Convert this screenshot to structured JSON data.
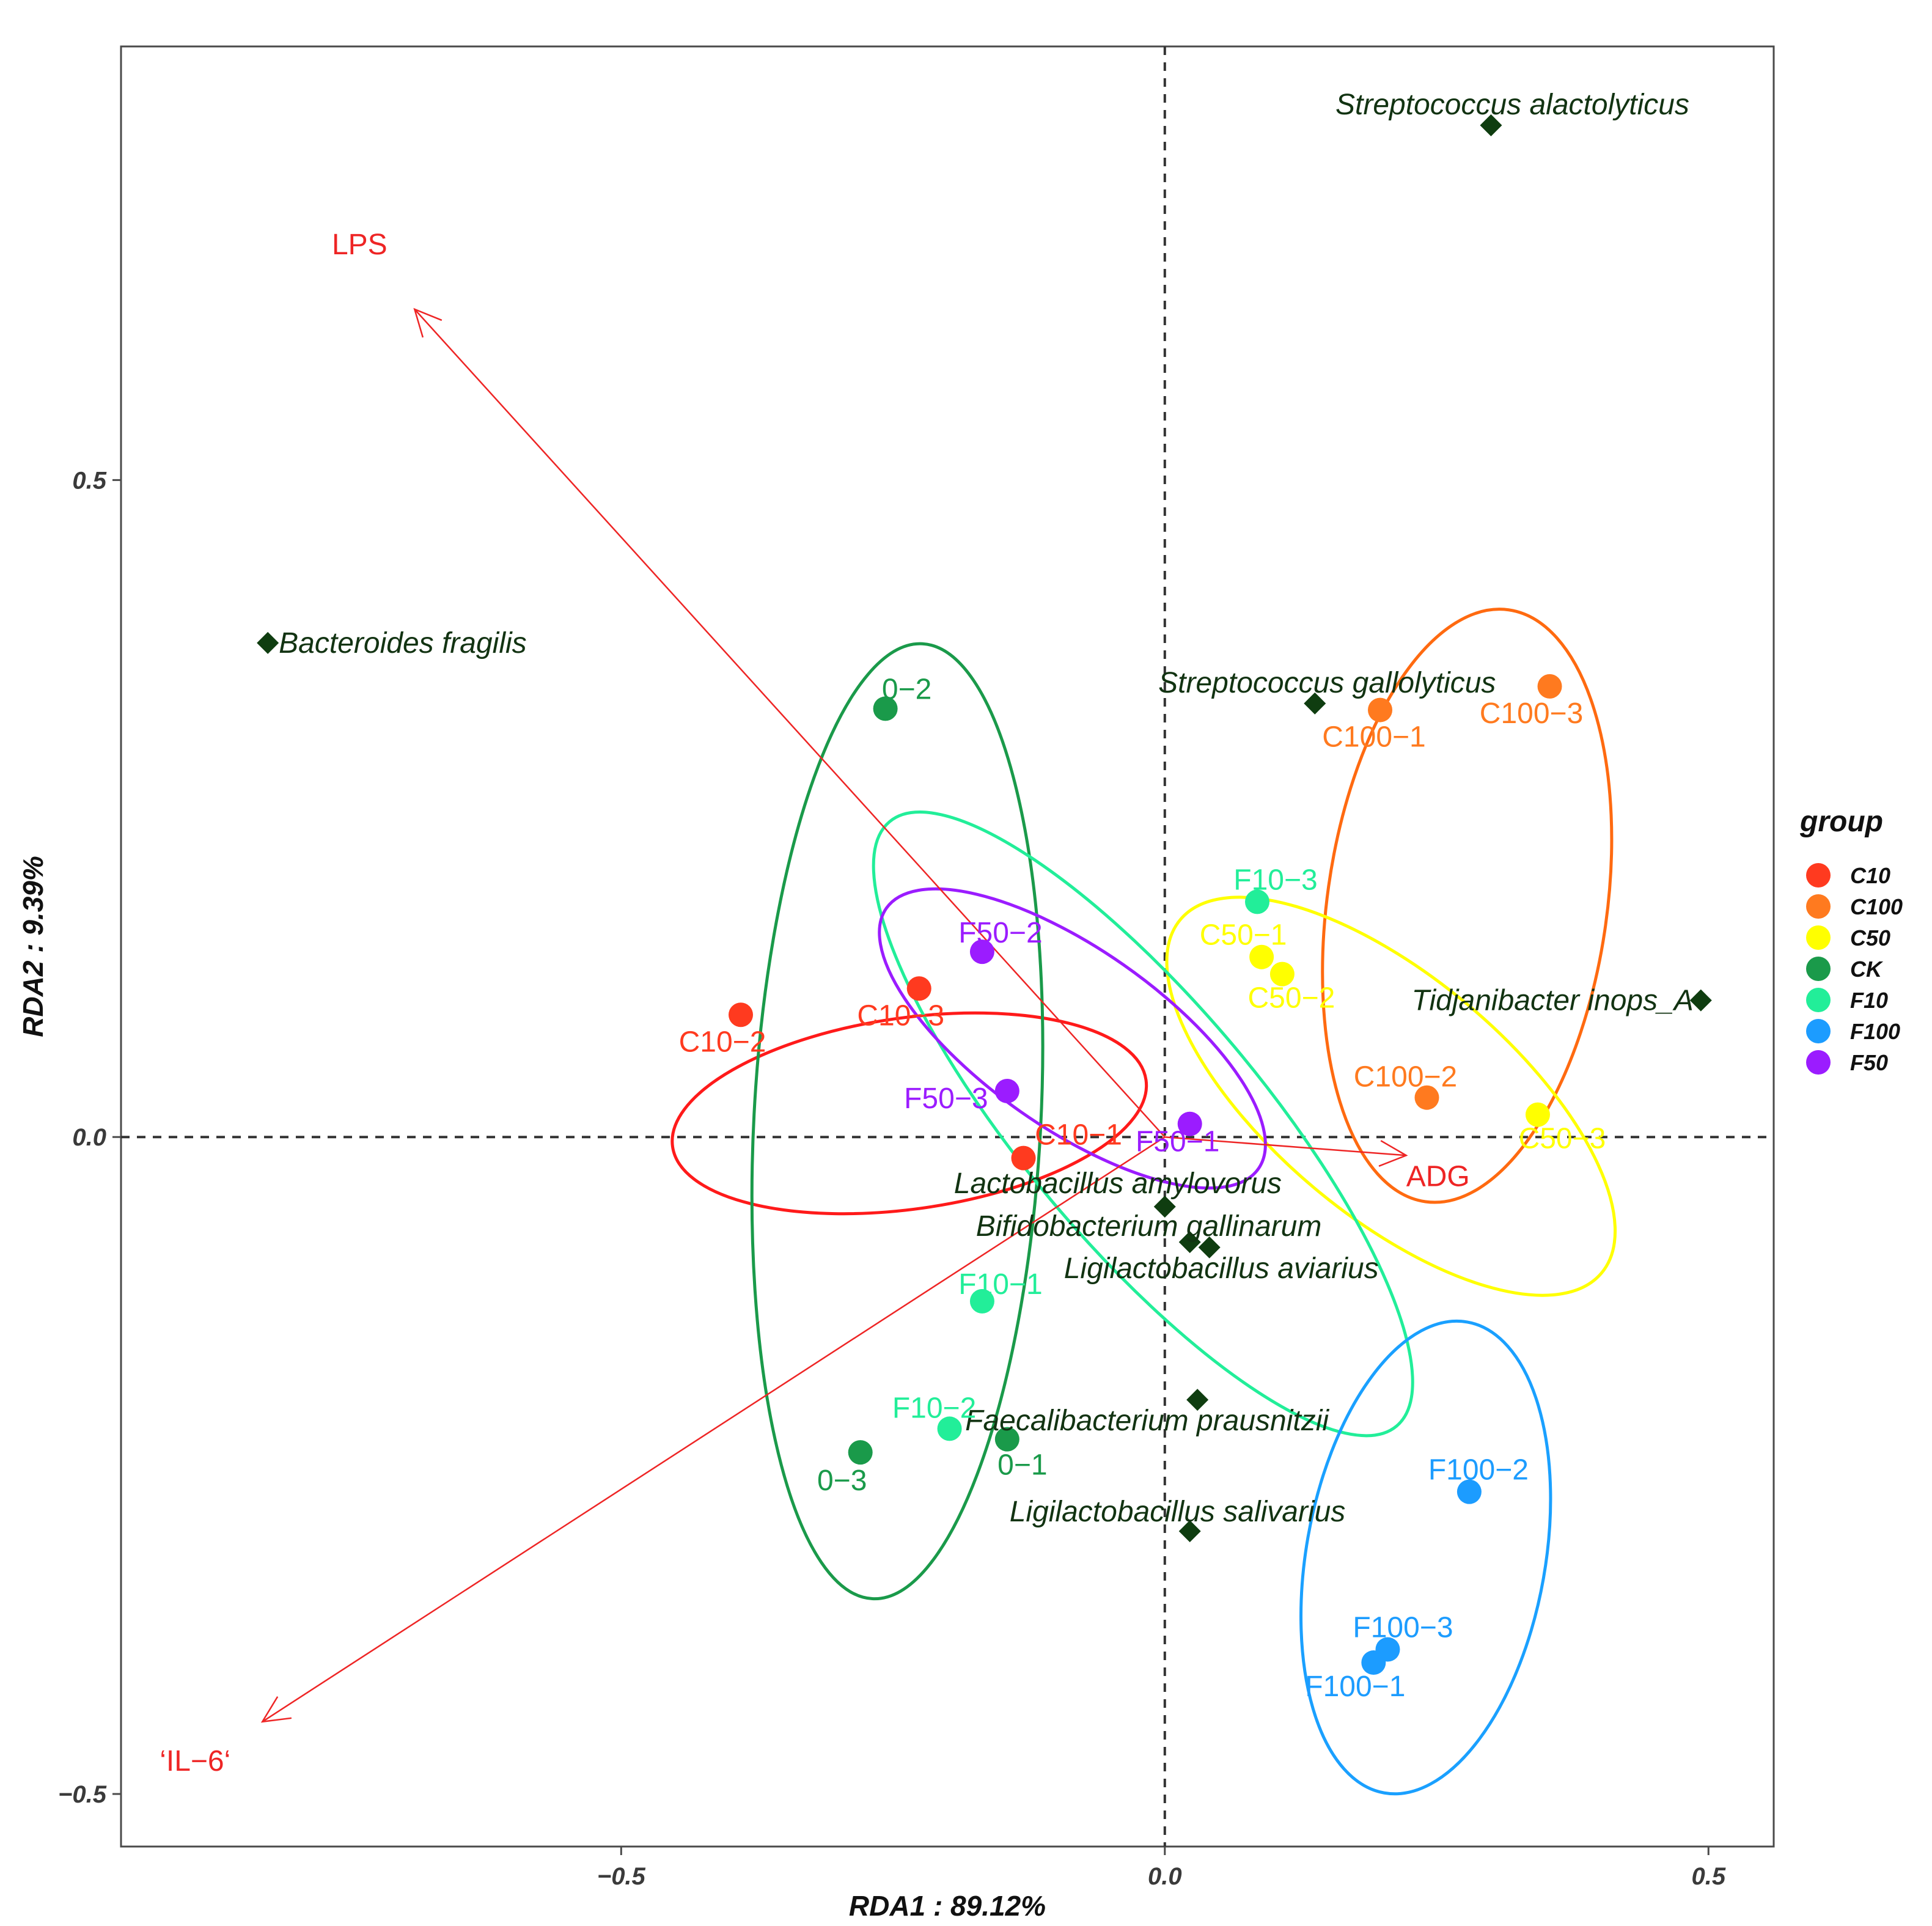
{
  "chart_data": {
    "type": "scatter",
    "subtype": "RDA biplot",
    "title": "",
    "xlabel": "RDA1 : 89.12%",
    "ylabel": "RDA2 : 9.39%",
    "xlim": [
      -0.96,
      0.56
    ],
    "ylim": [
      -0.54,
      0.83
    ],
    "xticks": [
      {
        "value": -0.5,
        "label": "-0.5"
      },
      {
        "value": 0.0,
        "label": "0.0"
      },
      {
        "value": 0.5,
        "label": "0.5"
      }
    ],
    "yticks": [
      {
        "value": -0.5,
        "label": "-0.5"
      },
      {
        "value": 0.0,
        "label": "0.0"
      },
      {
        "value": 0.5,
        "label": "0.5"
      }
    ],
    "reference_lines": {
      "x": 0,
      "y": 0,
      "style": "dashed"
    },
    "legend": {
      "title": "group",
      "position": "right",
      "entries": [
        {
          "label": "C10",
          "color": "#ff3a1f"
        },
        {
          "label": "C100",
          "color": "#ff7a1f"
        },
        {
          "label": "C50",
          "color": "#ffff00"
        },
        {
          "label": "CK",
          "color": "#1a9a4a"
        },
        {
          "label": "F10",
          "color": "#22ee99"
        },
        {
          "label": "F100",
          "color": "#1c9cff"
        },
        {
          "label": "F50",
          "color": "#9b1cff"
        }
      ]
    },
    "groups": [
      {
        "name": "C10",
        "color": "#ff3a1f",
        "ellipse_color": "#ff1a1a",
        "ellipse": {
          "cx": -0.235,
          "cy": 0.018,
          "rx": 0.2,
          "ry": 0.08,
          "angle_deg": 8
        },
        "points": [
          {
            "label": "C10-1",
            "x": -0.13,
            "y": -0.016
          },
          {
            "label": "C10-2",
            "x": -0.39,
            "y": 0.093
          },
          {
            "label": "C10-3",
            "x": -0.226,
            "y": 0.113
          }
        ]
      },
      {
        "name": "C100",
        "color": "#ff7a1f",
        "ellipse_color": "#ff6a10",
        "ellipse": {
          "cx": 0.278,
          "cy": 0.176,
          "rx": 0.25,
          "ry": 0.117,
          "angle_deg": 82
        },
        "points": [
          {
            "label": "C100-1",
            "x": 0.198,
            "y": 0.325
          },
          {
            "label": "C100-2",
            "x": 0.241,
            "y": 0.03
          },
          {
            "label": "C100-3",
            "x": 0.354,
            "y": 0.343
          }
        ]
      },
      {
        "name": "C50",
        "color": "#ffff00",
        "ellipse_color": "#ffff00",
        "ellipse": {
          "cx": 0.208,
          "cy": 0.031,
          "rx": 0.23,
          "ry": 0.1,
          "angle_deg": -40
        },
        "points": [
          {
            "label": "C50-1",
            "x": 0.089,
            "y": 0.137
          },
          {
            "label": "C50-2",
            "x": 0.108,
            "y": 0.124
          },
          {
            "label": "C50-3",
            "x": 0.343,
            "y": 0.017
          }
        ]
      },
      {
        "name": "CK",
        "color": "#1a9a4a",
        "ellipse_color": "#1a9a4a",
        "ellipse": {
          "cx": -0.246,
          "cy": 0.012,
          "rx": 0.4,
          "ry": 0.12,
          "angle_deg": 87
        },
        "points": [
          {
            "label": "0-1",
            "x": -0.145,
            "y": -0.23
          },
          {
            "label": "0-2",
            "x": -0.257,
            "y": 0.326
          },
          {
            "label": "0-3",
            "x": -0.28,
            "y": -0.24
          }
        ]
      },
      {
        "name": "F10",
        "color": "#22ee99",
        "ellipse_color": "#22ee99",
        "ellipse": {
          "cx": -0.02,
          "cy": 0.01,
          "rx": 0.33,
          "ry": 0.1,
          "angle_deg": -50
        },
        "points": [
          {
            "label": "F10-1",
            "x": -0.168,
            "y": -0.125
          },
          {
            "label": "F10-2",
            "x": -0.198,
            "y": -0.222
          },
          {
            "label": "F10-3",
            "x": 0.085,
            "y": 0.179
          }
        ]
      },
      {
        "name": "F100",
        "color": "#1c9cff",
        "ellipse_color": "#1aa0ff",
        "ellipse": {
          "cx": 0.24,
          "cy": -0.32,
          "rx": 0.2,
          "ry": 0.1,
          "angle_deg": 80
        },
        "points": [
          {
            "label": "F100-1",
            "x": 0.192,
            "y": -0.4
          },
          {
            "label": "F100-2",
            "x": 0.28,
            "y": -0.27
          },
          {
            "label": "F100-3",
            "x": 0.205,
            "y": -0.39
          }
        ]
      },
      {
        "name": "F50",
        "color": "#9b1cff",
        "ellipse_color": "#9b1cff",
        "ellipse": {
          "cx": -0.085,
          "cy": 0.075,
          "rx": 0.19,
          "ry": 0.075,
          "angle_deg": -35
        },
        "points": [
          {
            "label": "F50-1",
            "x": 0.023,
            "y": 0.01
          },
          {
            "label": "F50-2",
            "x": -0.168,
            "y": 0.141
          },
          {
            "label": "F50-3",
            "x": -0.145,
            "y": 0.035
          }
        ]
      }
    ],
    "species": [
      {
        "label": "Streptococcus alactolyticus",
        "x": 0.3,
        "y": 0.77
      },
      {
        "label": "Bacteroides fragilis",
        "x": -0.825,
        "y": 0.376
      },
      {
        "label": "Streptococcus gallolyticus",
        "x": 0.138,
        "y": 0.33
      },
      {
        "label": "Tidjanibacter inops_A",
        "x": 0.493,
        "y": 0.104
      },
      {
        "label": "Lactobacillus amylovorus",
        "x": 0.0,
        "y": -0.053
      },
      {
        "label": "Bifidobacterium gallinarum",
        "x": 0.023,
        "y": -0.08
      },
      {
        "label": "Ligilactobacillus aviarius",
        "x": 0.041,
        "y": -0.084
      },
      {
        "label": "Faecalibacterium prausnitzii",
        "x": 0.03,
        "y": -0.2
      },
      {
        "label": "Ligilactobacillus salivarius",
        "x": 0.023,
        "y": -0.3
      }
    ],
    "vectors": [
      {
        "label": "LPS",
        "x": -0.69,
        "y": 0.63,
        "color": "#ee2525"
      },
      {
        "label": "'IL-6'",
        "x": -0.83,
        "y": -0.445,
        "color": "#ee2525"
      },
      {
        "label": "ADG",
        "x": 0.222,
        "y": -0.014,
        "color": "#ee2525"
      }
    ]
  }
}
